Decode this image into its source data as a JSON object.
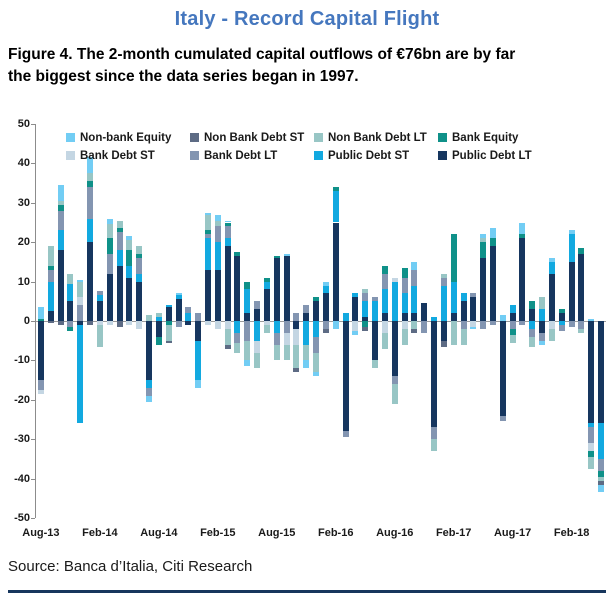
{
  "header": {
    "title": "Italy - Record Capital Flight",
    "title_color": "#4577be"
  },
  "figure_caption": {
    "line1": "Figure 4. The 2-month cumulated capital outflows of €76bn are by far",
    "line2": "the biggest since the data series began in 1997."
  },
  "footer": {
    "source": "Source: Banca d’Italia, Citi Research",
    "rule_color": "#17365d"
  },
  "chart_data": {
    "type": "bar",
    "stacked": true,
    "title": "",
    "xlabel": "",
    "ylabel": "",
    "ylim": [
      -50,
      50
    ],
    "y_ticks": [
      50,
      40,
      30,
      20,
      10,
      0,
      -10,
      -20,
      -30,
      -40,
      -50
    ],
    "x_tick_interval": 6,
    "x_tick_labels": [
      "Aug-13",
      "Feb-14",
      "Aug-14",
      "Feb-15",
      "Aug-15",
      "Feb-16",
      "Aug-16",
      "Feb-17",
      "Aug-17",
      "Feb-18"
    ],
    "grid": false,
    "legend_position": "top-inside",
    "categories": [
      "Aug-13",
      "Sep-13",
      "Oct-13",
      "Nov-13",
      "Dec-13",
      "Jan-14",
      "Feb-14",
      "Mar-14",
      "Apr-14",
      "May-14",
      "Jun-14",
      "Jul-14",
      "Aug-14",
      "Sep-14",
      "Oct-14",
      "Nov-14",
      "Dec-14",
      "Jan-15",
      "Feb-15",
      "Mar-15",
      "Apr-15",
      "May-15",
      "Jun-15",
      "Jul-15",
      "Aug-15",
      "Sep-15",
      "Oct-15",
      "Nov-15",
      "Dec-15",
      "Jan-16",
      "Feb-16",
      "Mar-16",
      "Apr-16",
      "May-16",
      "Jun-16",
      "Jul-16",
      "Aug-16",
      "Sep-16",
      "Oct-16",
      "Nov-16",
      "Dec-16",
      "Jan-17",
      "Feb-17",
      "Mar-17",
      "Apr-17",
      "May-17",
      "Jun-17",
      "Jul-17",
      "Aug-17",
      "Sep-17",
      "Oct-17",
      "Nov-17",
      "Dec-17",
      "Jan-18",
      "Feb-18",
      "Mar-18",
      "Apr-18",
      "May-18"
    ],
    "series": [
      {
        "name": "Non-bank Equity",
        "color": "#72cdf4",
        "values": [
          3,
          0,
          4,
          0,
          0.5,
          4,
          0,
          1.5,
          0,
          1,
          0,
          -1.5,
          0,
          0,
          0.5,
          0,
          -2,
          0.5,
          1.5,
          0.5,
          0,
          -1.5,
          0,
          0,
          0,
          0.5,
          0,
          -2,
          -1,
          1,
          -2,
          0,
          -1,
          0,
          0,
          0,
          0,
          0,
          2,
          0,
          0,
          0,
          0,
          0,
          -0.5,
          1,
          2.5,
          1.5,
          0,
          3,
          0,
          -1,
          1,
          0,
          1,
          0,
          0.5,
          -2
        ]
      },
      {
        "name": "Non Bank Debt ST",
        "color": "#5d6b84",
        "values": [
          0,
          -0.5,
          -1,
          0,
          0,
          -1,
          0,
          0,
          -1.5,
          0,
          0,
          0,
          0,
          -0.5,
          0,
          0,
          0,
          0,
          0,
          -1,
          0,
          0,
          0,
          0,
          0,
          0,
          -1,
          0,
          0,
          -1,
          0,
          0,
          0,
          -1,
          0,
          0,
          0,
          0,
          -1,
          0,
          0,
          -1.5,
          0,
          0,
          0,
          0,
          0,
          0,
          0,
          0,
          0,
          0,
          0,
          0,
          0,
          0,
          0,
          -1
        ]
      },
      {
        "name": "Non Bank Debt LT",
        "color": "#98c6c5",
        "values": [
          0,
          5,
          1,
          2.5,
          4,
          2,
          -5.5,
          3.5,
          2,
          2.5,
          2,
          1.5,
          1,
          -4,
          0,
          0,
          0,
          4,
          1.5,
          -4,
          -2.5,
          -5,
          -4,
          -2,
          -4,
          -4,
          -6,
          -4,
          -5,
          0,
          0,
          0,
          0,
          1,
          -2,
          -4,
          -5,
          -4,
          -2,
          0,
          -3,
          1,
          -6,
          -4,
          0,
          1,
          0,
          0,
          -2,
          0,
          -2.5,
          3,
          -3,
          0,
          0,
          -1,
          -3,
          -1
        ]
      },
      {
        "name": "Bank Equity",
        "color": "#0f9189",
        "values": [
          0.5,
          1,
          1.5,
          -1,
          0,
          1.5,
          0,
          4,
          1,
          4,
          1,
          0,
          -2,
          -1,
          0,
          0,
          0,
          1,
          0,
          1,
          1,
          2,
          0,
          1,
          0.5,
          0,
          0,
          0,
          1,
          0,
          1,
          0,
          0,
          -1.5,
          0,
          2,
          0,
          2.5,
          0,
          0,
          0,
          0,
          12,
          0,
          0,
          4,
          2,
          0,
          -1.5,
          1,
          2,
          0,
          0,
          1,
          0,
          1.5,
          -1.5,
          -1.5
        ]
      },
      {
        "name": "Bank Debt ST",
        "color": "#c4d6e3",
        "values": [
          -1,
          0,
          0,
          0,
          2,
          0,
          -1,
          -1,
          0,
          -1,
          -2,
          0,
          0,
          0,
          0,
          0,
          0,
          -1,
          -2,
          -2,
          0,
          0,
          -3,
          -1,
          0,
          -3,
          -4,
          0,
          0,
          0,
          0,
          0,
          -2.5,
          0,
          0,
          -3,
          1,
          -2,
          0,
          0,
          0,
          0,
          0,
          0,
          -1.5,
          0,
          0,
          0,
          0,
          0,
          0,
          0,
          -2,
          0,
          0,
          0,
          -2,
          0
        ]
      },
      {
        "name": "Bank Debt LT",
        "color": "#8395b1",
        "values": [
          -2.5,
          3,
          5,
          -1.5,
          4,
          8,
          1,
          5,
          4.5,
          0,
          4,
          -2,
          0,
          0,
          -1.5,
          1.5,
          2,
          1,
          4,
          3,
          -2.5,
          -5,
          2,
          0,
          -3,
          -3,
          2,
          2,
          -4,
          -2,
          0,
          -1.5,
          0,
          2,
          1,
          4,
          -2,
          4,
          4,
          -3,
          -3,
          2,
          0,
          -2,
          1,
          -2,
          -1,
          -1.5,
          -2,
          -1,
          -2,
          -2,
          0,
          -1.5,
          -1.5,
          -2,
          -4,
          -3
        ]
      },
      {
        "name": "Public Debt  ST",
        "color": "#12a9e0",
        "values": [
          0,
          7.5,
          5,
          4.5,
          -25,
          6,
          1.5,
          0,
          4,
          3,
          2,
          -2,
          1,
          0.5,
          1,
          2,
          -10,
          8,
          7,
          2,
          -3,
          6,
          -5,
          2,
          -3,
          0,
          0,
          -6,
          -4,
          2,
          8,
          2,
          1,
          4,
          5,
          6,
          10,
          5,
          7,
          0,
          1,
          9,
          8,
          2,
          0,
          0,
          0,
          0,
          2,
          0,
          -2,
          3,
          3,
          -1,
          7,
          0,
          -1,
          -9
        ]
      },
      {
        "name": "Public Debt  LT",
        "color": "#16365f",
        "values": [
          -15,
          2.5,
          18,
          5,
          -1,
          20,
          5,
          12,
          14,
          11,
          10,
          -15,
          -4,
          3.5,
          5.5,
          -1,
          -5,
          13,
          13,
          19,
          16.5,
          2,
          3,
          8,
          16,
          16.5,
          -2,
          2,
          5,
          7,
          25,
          -28,
          6,
          1,
          -10,
          2,
          -14,
          2,
          2,
          4.5,
          -27,
          -5,
          2,
          5,
          6,
          16,
          19,
          -24,
          2,
          21,
          3,
          -3,
          12,
          2,
          15,
          17,
          -26,
          -26
        ]
      }
    ]
  }
}
